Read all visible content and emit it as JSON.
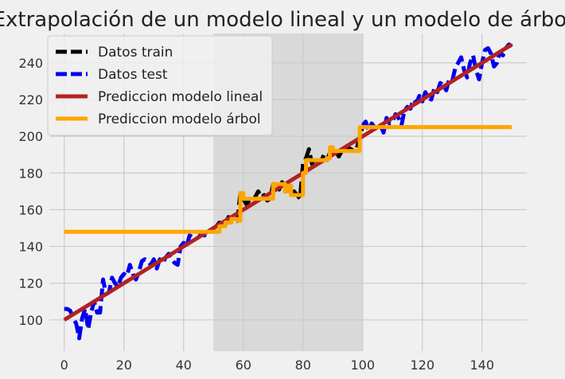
{
  "chart_data": {
    "type": "line",
    "title": "Extrapolación de un modelo lineal y un modelo de árbol",
    "xlabel": "",
    "ylabel": "",
    "xlim": [
      -5,
      155
    ],
    "ylim": [
      83,
      256
    ],
    "xticks": [
      0,
      20,
      40,
      60,
      80,
      100,
      120,
      140
    ],
    "yticks": [
      100,
      120,
      140,
      160,
      180,
      200,
      220,
      240
    ],
    "grid": true,
    "legend_position": "top-left",
    "shaded_region": {
      "x_start": 50,
      "x_end": 100,
      "color": "#d9d9d9"
    },
    "series": [
      {
        "name": "Datos test",
        "style": "dashed",
        "color": "#0000ee",
        "x": [
          0,
          1,
          2,
          3,
          4,
          5,
          6,
          7,
          8,
          9,
          10,
          11,
          12,
          13,
          14,
          15,
          16,
          17,
          18,
          19,
          20,
          21,
          22,
          23,
          24,
          25,
          26,
          27,
          28,
          29,
          30,
          31,
          32,
          33,
          34,
          35,
          36,
          37,
          38,
          39,
          40,
          41,
          42,
          43,
          44,
          45,
          46,
          47,
          48,
          49,
          50
        ],
        "y": [
          106,
          106,
          105,
          101,
          98,
          90,
          101,
          106,
          95,
          104,
          110,
          104,
          104,
          122,
          114,
          115,
          123,
          120,
          118,
          123,
          125,
          124,
          130,
          125,
          122,
          126,
          132,
          133,
          132,
          130,
          133,
          128,
          133,
          131,
          134,
          136,
          133,
          131,
          130,
          140,
          142,
          140,
          146,
          145,
          144,
          145,
          147,
          146,
          148,
          149,
          150
        ]
      },
      {
        "name": "Datos test",
        "style": "dashed",
        "color": "#0000ee",
        "x": [
          100,
          101,
          102,
          103,
          104,
          105,
          106,
          107,
          108,
          109,
          110,
          111,
          112,
          113,
          114,
          115,
          116,
          117,
          118,
          119,
          120,
          121,
          122,
          123,
          124,
          125,
          126,
          127,
          128,
          129,
          130,
          131,
          132,
          133,
          134,
          135,
          136,
          137,
          138,
          139,
          140,
          141,
          142,
          143,
          144,
          145,
          146,
          147,
          148,
          149,
          150
        ],
        "y": [
          206,
          208,
          203,
          207,
          205,
          204,
          206,
          202,
          210,
          207,
          208,
          212,
          210,
          206,
          214,
          216,
          215,
          220,
          218,
          222,
          219,
          224,
          221,
          220,
          226,
          224,
          229,
          228,
          225,
          231,
          230,
          237,
          240,
          243,
          236,
          232,
          240,
          244,
          236,
          231,
          240,
          247,
          248,
          245,
          238,
          240,
          246,
          244,
          248,
          250,
          249
        ]
      },
      {
        "name": "Datos train",
        "style": "dashed",
        "color": "#000000",
        "x": [
          50,
          51,
          52,
          53,
          54,
          55,
          56,
          57,
          58,
          59,
          60,
          61,
          62,
          63,
          64,
          65,
          66,
          67,
          68,
          69,
          70,
          71,
          72,
          73,
          74,
          75,
          76,
          77,
          78,
          79,
          80,
          81,
          82,
          83,
          84,
          85,
          86,
          87,
          88,
          89,
          90,
          91,
          92,
          93,
          94,
          95,
          96,
          97,
          98,
          99,
          100
        ],
        "y": [
          150,
          151,
          153,
          152,
          151,
          156,
          155,
          153,
          154,
          169,
          166,
          163,
          165,
          164,
          167,
          170,
          167,
          168,
          165,
          166,
          174,
          172,
          171,
          175,
          170,
          173,
          168,
          170,
          168,
          166,
          185,
          188,
          193,
          185,
          188,
          186,
          186,
          190,
          187,
          191,
          193,
          192,
          189,
          192,
          191,
          194,
          193,
          192,
          193,
          200,
          205
        ]
      },
      {
        "name": "Prediccion modelo lineal",
        "style": "solid",
        "color": "#b22222",
        "x": [
          0,
          150
        ],
        "y": [
          100,
          250
        ]
      },
      {
        "name": "Prediccion modelo árbol",
        "style": "solid",
        "color": "#ffa500",
        "x": [
          0,
          50,
          52,
          53,
          54,
          55,
          56,
          57,
          58,
          59,
          60,
          61,
          66,
          67,
          68,
          69,
          70,
          73,
          74,
          75,
          76,
          77,
          78,
          79,
          80,
          81,
          82,
          83,
          84,
          85,
          86,
          87,
          88,
          89,
          90,
          91,
          92,
          93,
          94,
          95,
          96,
          97,
          98,
          99,
          100,
          150
        ],
        "y": [
          148,
          148,
          151,
          151,
          153,
          153,
          155,
          155,
          154,
          169,
          166,
          166,
          166,
          166,
          166,
          166,
          174,
          174,
          170,
          173,
          168,
          168,
          168,
          168,
          180,
          187,
          187,
          187,
          187,
          187,
          187,
          187,
          188,
          194,
          192,
          192,
          192,
          192,
          192,
          192,
          192,
          192,
          192,
          205,
          205,
          205
        ]
      }
    ],
    "legend": [
      {
        "label": "Datos train",
        "color": "#000000",
        "style": "dashed"
      },
      {
        "label": "Datos test",
        "color": "#0000ee",
        "style": "dashed"
      },
      {
        "label": "Prediccion modelo lineal",
        "color": "#b22222",
        "style": "solid"
      },
      {
        "label": "Prediccion modelo árbol",
        "color": "#ffa500",
        "style": "solid"
      }
    ]
  }
}
